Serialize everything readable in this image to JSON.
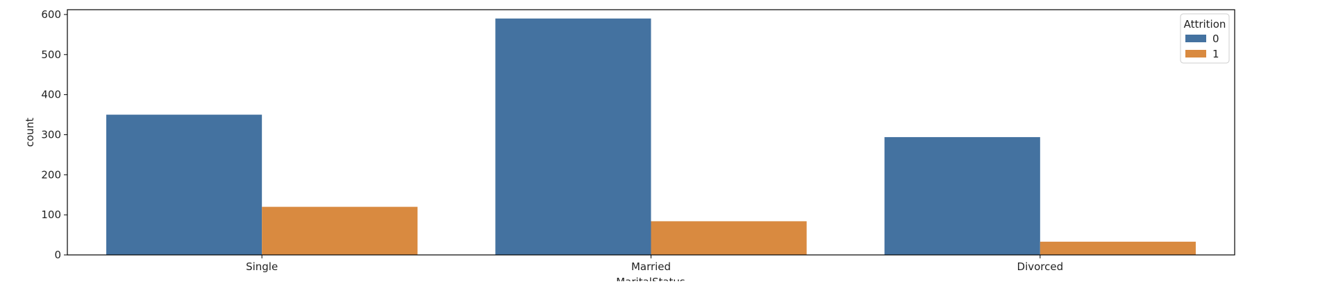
{
  "chart_data": {
    "type": "bar",
    "title": "",
    "xlabel": "MaritalStatus",
    "ylabel": "count",
    "categories": [
      "Single",
      "Married",
      "Divorced"
    ],
    "series": [
      {
        "name": "0",
        "values": [
          350,
          590,
          294
        ],
        "color": "#4472a0"
      },
      {
        "name": "1",
        "values": [
          120,
          84,
          33
        ],
        "color": "#d98a40"
      }
    ],
    "ylim": [
      0,
      612
    ],
    "yticks": [
      0,
      100,
      200,
      300,
      400,
      500,
      600
    ],
    "grid": false,
    "legend": {
      "title": "Attrition",
      "placement": "top-right"
    }
  }
}
